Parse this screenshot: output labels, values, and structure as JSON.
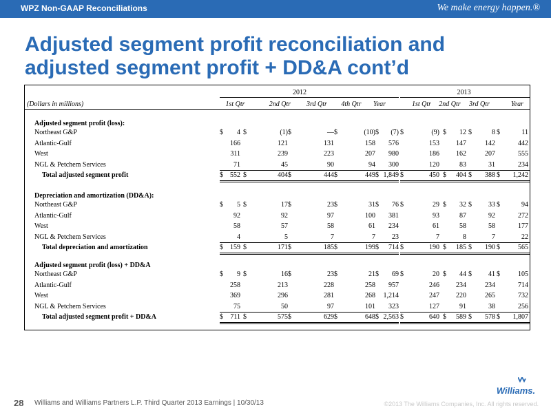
{
  "header": {
    "section": "WPZ Non-GAAP Reconciliations",
    "tagline": "We make energy happen.®"
  },
  "title": {
    "line1": "Adjusted segment profit reconciliation and",
    "line2": "adjusted segment profit + DD&A cont’d"
  },
  "table": {
    "units_label": "(Dollars in millions)",
    "years": [
      "2012",
      "2013"
    ],
    "columns_2012": [
      "1st Qtr",
      "2nd Qtr",
      "3rd Qtr",
      "4th Qtr",
      "Year"
    ],
    "columns_2013": [
      "1st Qtr",
      "2nd Qtr",
      "3rd Qtr",
      "Year"
    ],
    "sections": [
      {
        "heading": "Adjusted segment profit (loss):",
        "rows": [
          {
            "label": "Northeast G&P",
            "v2012": [
              "4",
              "(1)",
              "—",
              "(10)",
              "(7)"
            ],
            "v2013": [
              "(9)",
              "12",
              "8",
              "11"
            ]
          },
          {
            "label": "Atlantic-Gulf",
            "v2012": [
              "166",
              "121",
              "131",
              "158",
              "576"
            ],
            "v2013": [
              "153",
              "147",
              "142",
              "442"
            ]
          },
          {
            "label": "West",
            "v2012": [
              "311",
              "239",
              "223",
              "207",
              "980"
            ],
            "v2013": [
              "186",
              "162",
              "207",
              "555"
            ]
          },
          {
            "label": "NGL & Petchem Services",
            "v2012": [
              "71",
              "45",
              "90",
              "94",
              "300"
            ],
            "v2013": [
              "120",
              "83",
              "31",
              "234"
            ]
          }
        ],
        "total": {
          "label": "Total adjusted segment profit",
          "v2012": [
            "552",
            "404",
            "444",
            "449",
            "1,849"
          ],
          "v2013": [
            "450",
            "404",
            "388",
            "1,242"
          ]
        }
      },
      {
        "heading": "Depreciation and amortization (DD&A):",
        "rows": [
          {
            "label": "Northeast G&P",
            "v2012": [
              "5",
              "17",
              "23",
              "31",
              "76"
            ],
            "v2013": [
              "29",
              "32",
              "33",
              "94"
            ]
          },
          {
            "label": "Atlantic-Gulf",
            "v2012": [
              "92",
              "92",
              "97",
              "100",
              "381"
            ],
            "v2013": [
              "93",
              "87",
              "92",
              "272"
            ]
          },
          {
            "label": "West",
            "v2012": [
              "58",
              "57",
              "58",
              "61",
              "234"
            ],
            "v2013": [
              "61",
              "58",
              "58",
              "177"
            ]
          },
          {
            "label": "NGL & Petchem Services",
            "v2012": [
              "4",
              "5",
              "7",
              "7",
              "23"
            ],
            "v2013": [
              "7",
              "8",
              "7",
              "22"
            ]
          }
        ],
        "total": {
          "label": "Total depreciation and amortization",
          "v2012": [
            "159",
            "171",
            "185",
            "199",
            "714"
          ],
          "v2013": [
            "190",
            "185",
            "190",
            "565"
          ]
        }
      },
      {
        "heading": "Adjusted segment profit (loss) + DD&A",
        "rows": [
          {
            "label": "Northeast G&P",
            "v2012": [
              "9",
              "16",
              "23",
              "21",
              "69"
            ],
            "v2013": [
              "20",
              "44",
              "41",
              "105"
            ]
          },
          {
            "label": "Atlantic-Gulf",
            "v2012": [
              "258",
              "213",
              "228",
              "258",
              "957"
            ],
            "v2013": [
              "246",
              "234",
              "234",
              "714"
            ]
          },
          {
            "label": "West",
            "v2012": [
              "369",
              "296",
              "281",
              "268",
              "1,214"
            ],
            "v2013": [
              "247",
              "220",
              "265",
              "732"
            ]
          },
          {
            "label": "NGL & Petchem Services",
            "v2012": [
              "75",
              "50",
              "97",
              "101",
              "323"
            ],
            "v2013": [
              "127",
              "91",
              "38",
              "256"
            ]
          }
        ],
        "total": {
          "label": "Total adjusted segment profit + DD&A",
          "v2012": [
            "711",
            "575",
            "629",
            "648",
            "2,563"
          ],
          "v2013": [
            "640",
            "589",
            "578",
            "1,807"
          ]
        }
      }
    ]
  },
  "footer": {
    "page_number": "28",
    "text": "Williams and Williams Partners L.P. Third Quarter 2013 Earnings  |  10/30/13",
    "copyright": "©2013 The Williams Companies, Inc. All rights reserved.",
    "logo_text": "Williams."
  },
  "colors": {
    "brand_blue": "#2a6bb5"
  }
}
